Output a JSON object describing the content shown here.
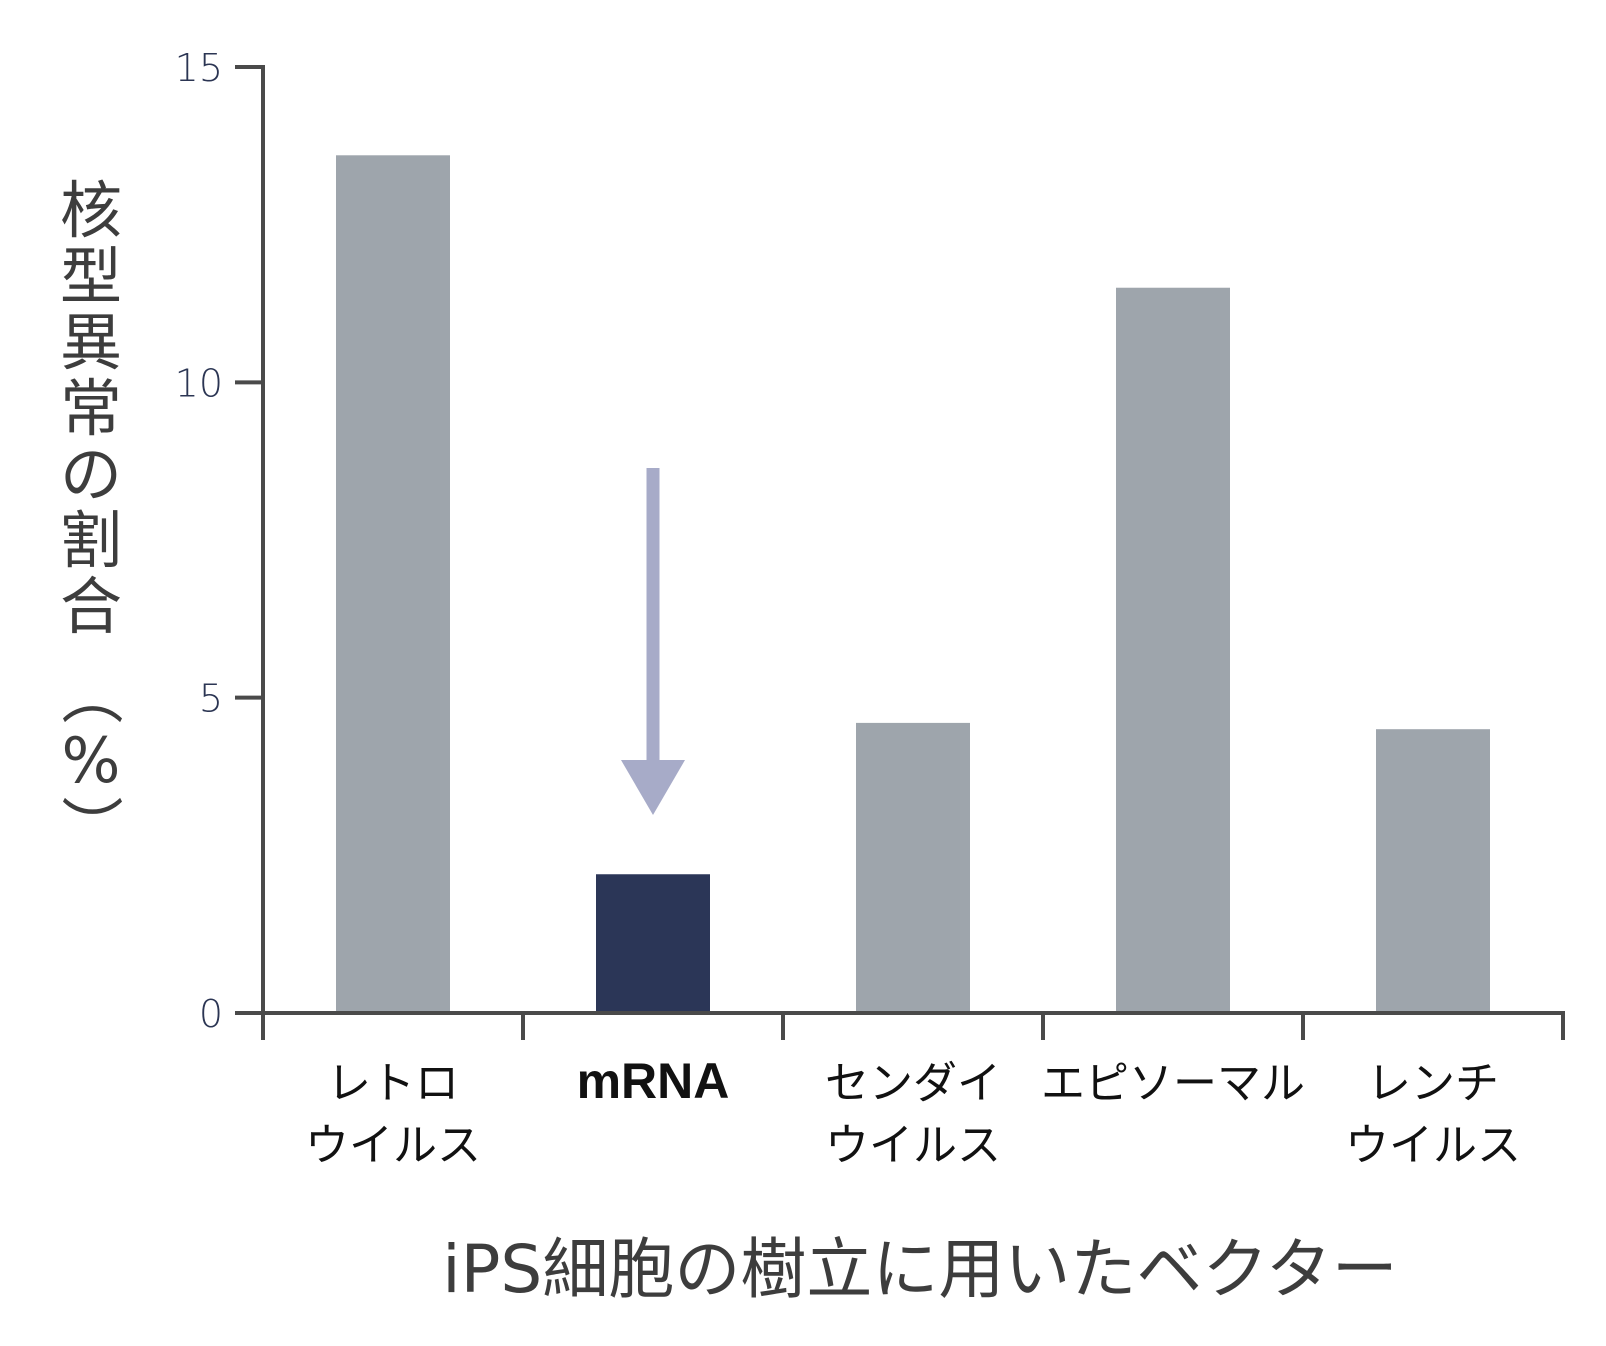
{
  "chart_data": {
    "type": "bar",
    "title": "",
    "xlabel": "iPS細胞の樹立に用いたベクター",
    "ylabel": "核型異常の割合（%）",
    "ylabel_chars": [
      "核",
      "型",
      "異",
      "常",
      "の",
      "割",
      "合",
      "（",
      "%",
      "）"
    ],
    "ylim": [
      0,
      15
    ],
    "yticks": [
      0,
      5,
      10,
      15
    ],
    "grid": false,
    "legend": null,
    "categories": [
      {
        "lines": [
          "レトロ",
          "ウイルス"
        ],
        "highlight": false
      },
      {
        "lines": [
          "mRNA"
        ],
        "highlight": true
      },
      {
        "lines": [
          "センダイ",
          "ウイルス"
        ],
        "highlight": false
      },
      {
        "lines": [
          "エピソーマル"
        ],
        "highlight": false
      },
      {
        "lines": [
          "レンチ",
          "ウイルス"
        ],
        "highlight": false
      }
    ],
    "category_names": [
      "レトロウイルス",
      "mRNA",
      "センダイウイルス",
      "エピソーマル",
      "レンチウイルス"
    ],
    "values": [
      13.6,
      2.2,
      4.6,
      11.5,
      4.5
    ],
    "annotations": [
      {
        "type": "arrow",
        "direction": "down",
        "target_category": "mRNA"
      }
    ]
  },
  "colors": {
    "bar_default": "#9ea5ac",
    "bar_highlight": "#2b3657",
    "arrow": "#a7abc8",
    "axis": "#4a4a4a",
    "tick_label": "#2b3553",
    "axis_title": "#3d3d3d",
    "category_label": "#111111"
  }
}
